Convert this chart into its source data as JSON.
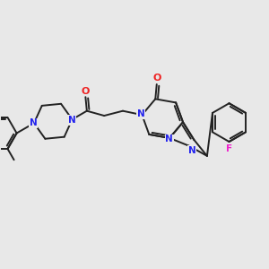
{
  "bg_color": "#e8e8e8",
  "bond_color": "#222222",
  "N_color": "#2222ee",
  "O_color": "#ee2222",
  "F_color": "#ee22cc",
  "bond_lw": 1.4,
  "figsize": [
    3.0,
    3.0
  ],
  "dpi": 100,
  "xlim": [
    0,
    10
  ],
  "ylim": [
    0,
    10
  ]
}
